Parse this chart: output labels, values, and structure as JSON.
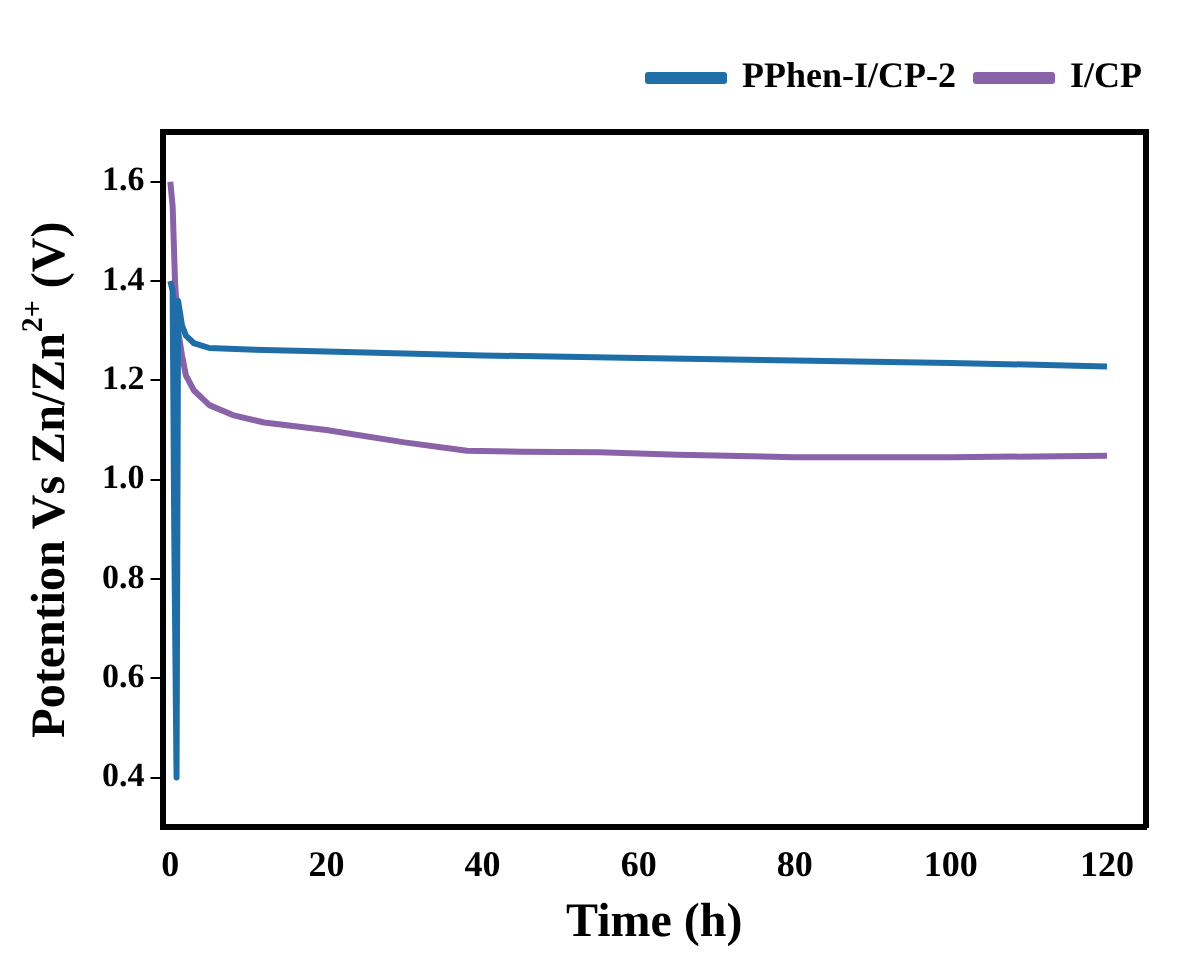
{
  "chart_data": {
    "type": "line",
    "xlabel": "Time (h)",
    "ylabel": "Potention Vs Zn/Zn$^{2+}$ (V)",
    "xlim": [
      -1,
      125
    ],
    "xticks": [
      0,
      20,
      40,
      60,
      80,
      100,
      120
    ],
    "ylim": [
      0.3,
      1.7
    ],
    "yticks": [
      0.4,
      0.6,
      0.8,
      {
        "value": 1,
        "label": "1.0"
      },
      1.2,
      1.4,
      1.6
    ],
    "legend": "top right",
    "grid": false,
    "marker": "none",
    "line_style": "solid",
    "series": [
      {
        "name": "PPhen-I/CP-2",
        "color": "#1f6ea8",
        "x": [
          0,
          0.3,
          0.5,
          0.8,
          1,
          1.5,
          2,
          3,
          5,
          10,
          20,
          40,
          60,
          80,
          100,
          120
        ],
        "values": [
          1.4,
          1.38,
          0.9,
          0.4,
          1.36,
          1.31,
          1.29,
          1.275,
          1.265,
          1.262,
          1.258,
          1.25,
          1.245,
          1.24,
          1.235,
          1.228
        ]
      },
      {
        "name": "I/CP",
        "color": "#8a62a8",
        "x": [
          0,
          0.3,
          0.6,
          1,
          1.5,
          2,
          3,
          5,
          8,
          12,
          20,
          30,
          38,
          45,
          55,
          65,
          80,
          100,
          120
        ],
        "values": [
          1.6,
          1.55,
          1.4,
          1.3,
          1.25,
          1.21,
          1.18,
          1.15,
          1.13,
          1.115,
          1.1,
          1.075,
          1.058,
          1.056,
          1.055,
          1.05,
          1.045,
          1.045,
          1.048
        ]
      }
    ]
  }
}
